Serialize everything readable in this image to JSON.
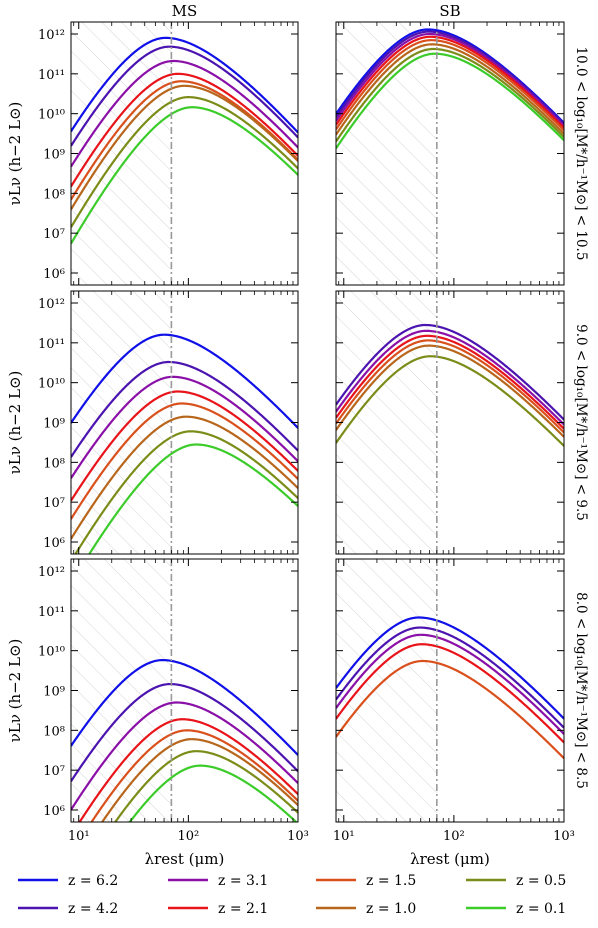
{
  "colors": {
    "z6.2": "#1010e8",
    "z4.2": "#4b14b0",
    "z3.1": "#8a10a8",
    "z2.1": "#e8141a",
    "z1.5": "#d9501c",
    "z1.0": "#b8661c",
    "z0.5": "#7c8c18",
    "z0.1": "#3ccc2a",
    "marker": "#999999",
    "hatch": "#d8d8d8"
  },
  "chart_data": {
    "type": "line",
    "x_scale": "log",
    "y_scale": "log",
    "xlim_um": [
      8.5,
      1000
    ],
    "ylim": [
      500000.0,
      2000000000000.0
    ],
    "xlabel": "λrest (μm)",
    "ylabel": "νLν (h−2 L⊙)",
    "x_ticks": [
      "10¹",
      "10²",
      "10³"
    ],
    "y_ticks": [
      "10⁶",
      "10⁷",
      "10⁸",
      "10⁹",
      "10¹⁰",
      "10¹¹",
      "10¹²"
    ],
    "column_titles": [
      "MS",
      "SB"
    ],
    "row_labels": [
      "10.0 < log₁₀[M*/h⁻¹M⊙] < 10.5",
      "9.0 < log₁₀[M*/h⁻¹M⊙] < 9.5",
      "8.0 < log₁₀[M*/h⁻¹M⊙] < 8.5"
    ],
    "vertical_marker_um": 70,
    "hatched_region_um": [
      8.5,
      70
    ],
    "legend": [
      "z = 6.2",
      "z = 4.2",
      "z = 3.1",
      "z = 2.1",
      "z = 1.5",
      "z = 1.0",
      "z = 0.5",
      "z = 0.1"
    ],
    "panels": [
      {
        "row": 0,
        "col": "MS",
        "sed_width": 0.62,
        "series": [
          {
            "name": "z = 6.2",
            "peak_um": 62,
            "peak_L": 800000000000.0
          },
          {
            "name": "z = 4.2",
            "peak_um": 67,
            "peak_L": 480000000000.0
          },
          {
            "name": "z = 3.1",
            "peak_um": 73,
            "peak_L": 210000000000.0
          },
          {
            "name": "z = 2.1",
            "peak_um": 80,
            "peak_L": 100000000000.0
          },
          {
            "name": "z = 1.5",
            "peak_um": 86,
            "peak_L": 65000000000.0
          },
          {
            "name": "z = 1.0",
            "peak_um": 92,
            "peak_L": 50000000000.0
          },
          {
            "name": "z = 0.5",
            "peak_um": 100,
            "peak_L": 26000000000.0
          },
          {
            "name": "z = 0.1",
            "peak_um": 108,
            "peak_L": 14500000000.0
          }
        ]
      },
      {
        "row": 0,
        "col": "SB",
        "sed_width": 0.65,
        "series": [
          {
            "name": "z = 6.2",
            "peak_um": 58,
            "peak_L": 1300000000000.0
          },
          {
            "name": "z = 4.2",
            "peak_um": 59,
            "peak_L": 1150000000000.0
          },
          {
            "name": "z = 3.1",
            "peak_um": 60,
            "peak_L": 1000000000000.0
          },
          {
            "name": "z = 2.1",
            "peak_um": 61,
            "peak_L": 850000000000.0
          },
          {
            "name": "z = 1.5",
            "peak_um": 62,
            "peak_L": 700000000000.0
          },
          {
            "name": "z = 1.0",
            "peak_um": 63,
            "peak_L": 550000000000.0
          },
          {
            "name": "z = 0.5",
            "peak_um": 65,
            "peak_L": 420000000000.0
          },
          {
            "name": "z = 0.1",
            "peak_um": 67,
            "peak_L": 320000000000.0
          }
        ]
      },
      {
        "row": 1,
        "col": "MS",
        "sed_width": 0.64,
        "series": [
          {
            "name": "z = 6.2",
            "peak_um": 60,
            "peak_L": 160000000000.0
          },
          {
            "name": "z = 4.2",
            "peak_um": 66,
            "peak_L": 33000000000.0
          },
          {
            "name": "z = 3.1",
            "peak_um": 72,
            "peak_L": 14000000000.0
          },
          {
            "name": "z = 2.1",
            "peak_um": 80,
            "peak_L": 6000000000.0
          },
          {
            "name": "z = 1.5",
            "peak_um": 87,
            "peak_L": 3000000000.0
          },
          {
            "name": "z = 1.0",
            "peak_um": 95,
            "peak_L": 1400000000.0
          },
          {
            "name": "z = 0.5",
            "peak_um": 105,
            "peak_L": 600000000.0
          },
          {
            "name": "z = 0.1",
            "peak_um": 118,
            "peak_L": 280000000.0
          }
        ]
      },
      {
        "row": 1,
        "col": "SB",
        "sed_width": 0.66,
        "series": [
          {
            "name": "z = 4.2",
            "peak_um": 55,
            "peak_L": 280000000000.0
          },
          {
            "name": "z = 3.1",
            "peak_um": 56,
            "peak_L": 200000000000.0
          },
          {
            "name": "z = 2.1",
            "peak_um": 57,
            "peak_L": 150000000000.0
          },
          {
            "name": "z = 1.5",
            "peak_um": 58,
            "peak_L": 115000000000.0
          },
          {
            "name": "z = 1.0",
            "peak_um": 59,
            "peak_L": 85000000000.0
          },
          {
            "name": "z = 0.5",
            "peak_um": 61,
            "peak_L": 46000000000.0
          }
        ]
      },
      {
        "row": 2,
        "col": "MS",
        "sed_width": 0.64,
        "series": [
          {
            "name": "z = 6.2",
            "peak_um": 58,
            "peak_L": 5800000000.0
          },
          {
            "name": "z = 4.2",
            "peak_um": 68,
            "peak_L": 1450000000.0
          },
          {
            "name": "z = 3.1",
            "peak_um": 78,
            "peak_L": 500000000.0
          },
          {
            "name": "z = 2.1",
            "peak_um": 88,
            "peak_L": 190000000.0
          },
          {
            "name": "z = 1.5",
            "peak_um": 97,
            "peak_L": 100000000.0
          },
          {
            "name": "z = 1.0",
            "peak_um": 107,
            "peak_L": 60000000.0
          },
          {
            "name": "z = 0.5",
            "peak_um": 118,
            "peak_L": 30000000.0
          },
          {
            "name": "z = 0.1",
            "peak_um": 128,
            "peak_L": 13000000.0
          }
        ]
      },
      {
        "row": 2,
        "col": "SB",
        "sed_width": 0.66,
        "series": [
          {
            "name": "z = 6.2",
            "peak_um": 48,
            "peak_L": 68000000000.0
          },
          {
            "name": "z = 4.2",
            "peak_um": 49,
            "peak_L": 38000000000.0
          },
          {
            "name": "z = 3.1",
            "peak_um": 50,
            "peak_L": 25000000000.0
          },
          {
            "name": "z = 2.1",
            "peak_um": 51,
            "peak_L": 14500000000.0
          },
          {
            "name": "z = 1.5",
            "peak_um": 52,
            "peak_L": 5500000000.0
          }
        ]
      }
    ]
  }
}
